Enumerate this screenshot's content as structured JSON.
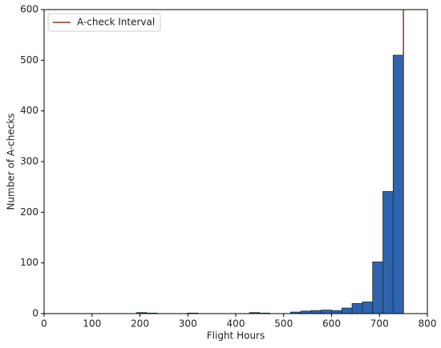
{
  "chart_data": {
    "type": "histogram",
    "x_label": "Flight Hours",
    "y_label": "Number of A-checks",
    "bins": [
      0,
      21.43,
      42.86,
      64.29,
      85.71,
      107.14,
      128.57,
      150,
      171.43,
      192.86,
      214.29,
      235.71,
      257.14,
      278.57,
      300,
      321.43,
      342.86,
      364.29,
      385.71,
      407.14,
      428.57,
      450,
      471.43,
      492.86,
      514.29,
      535.71,
      557.14,
      578.57,
      600,
      621.43,
      642.86,
      664.29,
      685.71,
      707.14,
      728.57,
      750
    ],
    "values": [
      0,
      0,
      0,
      0,
      0,
      0,
      0,
      0,
      0,
      2,
      1,
      0,
      0,
      0,
      1,
      0,
      0,
      0,
      0,
      0,
      2,
      1,
      0,
      0,
      3,
      5,
      6,
      7,
      6,
      11,
      20,
      23,
      102,
      241,
      510
    ],
    "color": "#2e64ad",
    "vline": {
      "x": 750,
      "label": "A-check Interval",
      "color": "#8b3a1a"
    },
    "legend": "upper left",
    "xlim": [
      0,
      800
    ],
    "xticks": [
      0,
      100,
      200,
      300,
      400,
      500,
      600,
      700,
      800
    ],
    "ylim": [
      0,
      600
    ],
    "yticks": [
      0,
      100,
      200,
      300,
      400,
      500,
      600
    ]
  }
}
